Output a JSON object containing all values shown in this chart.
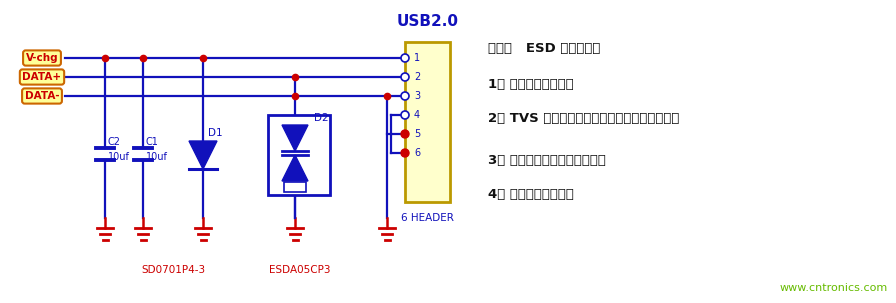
{
  "bg_color": "#ffffff",
  "circuit_color": "#1111BB",
  "red_color": "#CC0000",
  "note_title": "备注：   ESD 选型原则：",
  "note_lines": [
    "1、 选择合适的封装；",
    "2、 TVS 的击穿电压大于电路的最大工作电压；",
    "3、 选择符合测试要求的功率；",
    "4、 选择算位较小的。"
  ],
  "website": "www.cntronics.com",
  "website_color": "#66BB00",
  "usb_title": "USB2.0",
  "header_label": "6 HEADER",
  "sd_label": "SD0701P4-3",
  "esda_label": "ESDA05CP3",
  "input_labels": [
    "V-chg",
    "DATA+",
    "DATA-"
  ]
}
